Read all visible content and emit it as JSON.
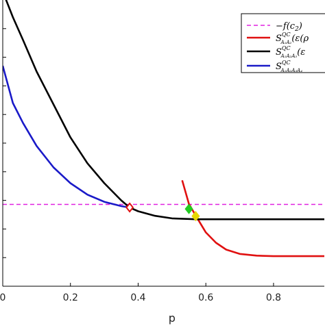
{
  "chart_data": {
    "type": "line",
    "xlabel": "p",
    "ylabel": "",
    "title": "",
    "xlim": [
      0,
      0.95
    ],
    "ylim": [
      0,
      1
    ],
    "x_ticks": [
      0,
      0.2,
      0.4,
      0.6,
      0.8
    ],
    "x_tick_labels": [
      "0",
      "0.2",
      "0.4",
      "0.6",
      "0.8"
    ],
    "grid": false,
    "legend_placement": "top-right",
    "series": [
      {
        "name": "−f(c₂)",
        "style": "dashed",
        "color": "#e020e0",
        "x": [
          0,
          0.95
        ],
        "y": [
          0.286,
          0.286
        ]
      },
      {
        "name": "S^{QC}_{A1A2}(ε(ρ",
        "style": "solid",
        "color": "#e01010",
        "x": [
          0.53,
          0.55,
          0.57,
          0.6,
          0.63,
          0.66,
          0.7,
          0.75,
          0.8,
          0.85,
          0.9,
          0.95
        ],
        "y": [
          0.37,
          0.288,
          0.247,
          0.188,
          0.152,
          0.128,
          0.113,
          0.107,
          0.105,
          0.105,
          0.105,
          0.105
        ]
      },
      {
        "name": "S^{QC}_{A1A2A3}(ε",
        "style": "solid",
        "color": "#000000",
        "x": [
          0,
          0.03,
          0.06,
          0.1,
          0.15,
          0.2,
          0.25,
          0.3,
          0.35,
          0.375,
          0.4,
          0.45,
          0.5,
          0.55,
          0.57,
          0.6,
          0.7,
          0.8,
          0.9,
          0.95
        ],
        "y": [
          1.03,
          0.94,
          0.86,
          0.75,
          0.635,
          0.52,
          0.43,
          0.36,
          0.3,
          0.275,
          0.262,
          0.246,
          0.237,
          0.235,
          0.234,
          0.234,
          0.234,
          0.234,
          0.234,
          0.234
        ]
      },
      {
        "name": "S^{QC}_{A1A2A3A4",
        "style": "solid",
        "color": "#1a1ac8",
        "x": [
          0,
          0.03,
          0.06,
          0.1,
          0.15,
          0.2,
          0.25,
          0.3,
          0.35,
          0.375
        ],
        "y": [
          0.77,
          0.64,
          0.57,
          0.49,
          0.415,
          0.36,
          0.32,
          0.295,
          0.28,
          0.275
        ]
      }
    ],
    "markers": [
      {
        "x": 0.375,
        "y": 0.275,
        "color": "#e01010"
      },
      {
        "x": 0.55,
        "y": 0.27,
        "color": "#22cc22"
      },
      {
        "x": 0.57,
        "y": 0.245,
        "color": "#e6d800"
      }
    ]
  },
  "legend": {
    "entries": [
      {
        "main": "−f(c",
        "sub": "2",
        "tail": ")",
        "subsub": ""
      },
      {
        "main": "S",
        "sup": "QC",
        "sub": "A₁A₂",
        "tail": "(ε(ρ"
      },
      {
        "main": "S",
        "sup": "QC",
        "sub": "A₁A₂A₃",
        "tail": "(ε"
      },
      {
        "main": "S",
        "sup": "QC",
        "sub": "A₁A₂A₃A₄",
        "tail": ""
      }
    ]
  }
}
